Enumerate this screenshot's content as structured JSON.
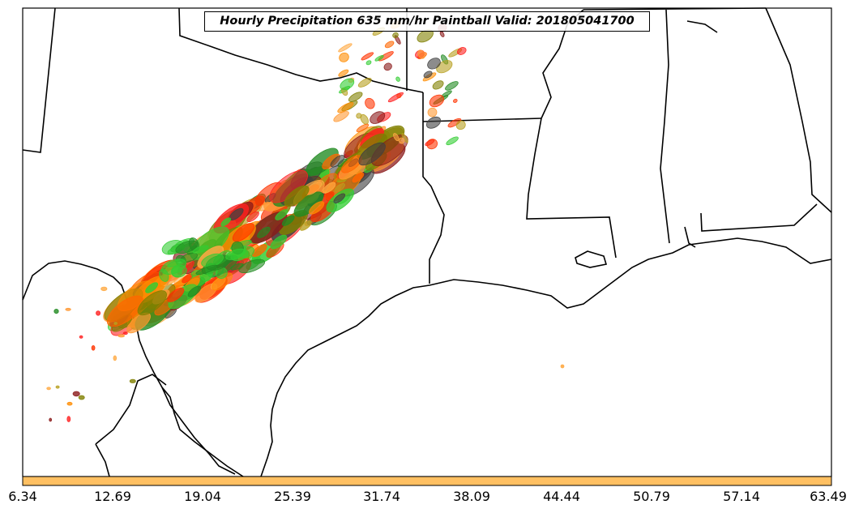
{
  "title": "Hourly Precipitation 635 mm/hr Paintball Valid: 201805041700",
  "colorbar": {
    "color": "#ffc062",
    "ticks": [
      "6.34",
      "12.69",
      "19.04",
      "25.39",
      "31.74",
      "38.09",
      "44.44",
      "50.79",
      "57.14",
      "63.49"
    ]
  },
  "colors": {
    "coastline": "#000000",
    "member_colors": [
      "#ff6600",
      "#ff3300",
      "#ff9933",
      "#ffaa44",
      "#228b22",
      "#32cd32",
      "#808000",
      "#b8a020",
      "#8b1a1a",
      "#404040",
      "#ff2020",
      "#ff8c00"
    ]
  }
}
